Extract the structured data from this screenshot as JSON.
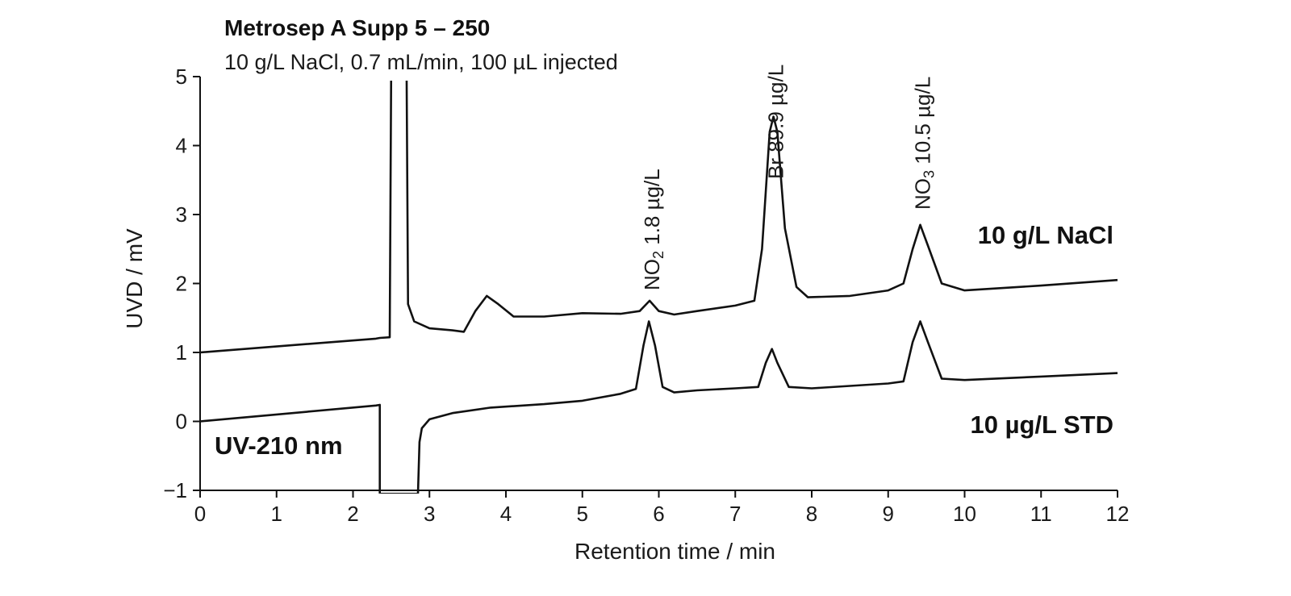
{
  "chart_data": {
    "type": "line",
    "title": "Metrosep A Supp 5 – 250",
    "subtitle": "10 g/L NaCl, 0.7 mL/min, 100 µL injected",
    "xlabel": "Retention  time / min",
    "ylabel": "UVD / mV",
    "xlim": [
      0,
      12
    ],
    "ylim": [
      -1,
      5
    ],
    "xticks": [
      "0",
      "1",
      "2",
      "3",
      "4",
      "5",
      "6",
      "7",
      "8",
      "9",
      "10",
      "11",
      "12"
    ],
    "yticks": [
      "−1",
      "0",
      "1",
      "2",
      "3",
      "4",
      "5"
    ],
    "grid": false,
    "detector_label": "UV-210 nm",
    "series": [
      {
        "name": "10 g/L NaCl",
        "baseline": [
          [
            0,
            1.0
          ],
          [
            12,
            2.05
          ]
        ],
        "points": [
          [
            0,
            1.0
          ],
          [
            2.3,
            1.2
          ],
          [
            2.35,
            1.21
          ],
          [
            2.48,
            1.22
          ],
          [
            2.5,
            5.3
          ],
          [
            2.7,
            5.3
          ],
          [
            2.72,
            1.7
          ],
          [
            2.8,
            1.45
          ],
          [
            3.0,
            1.35
          ],
          [
            3.3,
            1.32
          ],
          [
            3.45,
            1.3
          ],
          [
            3.6,
            1.6
          ],
          [
            3.75,
            1.82
          ],
          [
            3.9,
            1.7
          ],
          [
            4.1,
            1.52
          ],
          [
            4.5,
            1.52
          ],
          [
            5.0,
            1.57
          ],
          [
            5.5,
            1.56
          ],
          [
            5.75,
            1.6
          ],
          [
            5.88,
            1.75
          ],
          [
            6.0,
            1.6
          ],
          [
            6.2,
            1.55
          ],
          [
            6.5,
            1.6
          ],
          [
            7.0,
            1.68
          ],
          [
            7.25,
            1.75
          ],
          [
            7.35,
            2.5
          ],
          [
            7.45,
            4.2
          ],
          [
            7.5,
            4.42
          ],
          [
            7.55,
            4.2
          ],
          [
            7.65,
            2.8
          ],
          [
            7.8,
            1.95
          ],
          [
            7.95,
            1.8
          ],
          [
            8.5,
            1.82
          ],
          [
            9.0,
            1.9
          ],
          [
            9.2,
            2.0
          ],
          [
            9.32,
            2.5
          ],
          [
            9.42,
            2.85
          ],
          [
            9.52,
            2.55
          ],
          [
            9.7,
            2.0
          ],
          [
            10.0,
            1.9
          ],
          [
            11.0,
            1.97
          ],
          [
            12.0,
            2.05
          ]
        ]
      },
      {
        "name": "10 µg/L STD",
        "points": [
          [
            0,
            0.0
          ],
          [
            2.3,
            0.23
          ],
          [
            2.35,
            0.24
          ],
          [
            2.35,
            -1.05
          ],
          [
            2.85,
            -1.05
          ],
          [
            2.87,
            -0.3
          ],
          [
            2.9,
            -0.1
          ],
          [
            3.0,
            0.03
          ],
          [
            3.3,
            0.12
          ],
          [
            3.8,
            0.2
          ],
          [
            4.5,
            0.25
          ],
          [
            5.0,
            0.3
          ],
          [
            5.5,
            0.4
          ],
          [
            5.7,
            0.47
          ],
          [
            5.8,
            1.1
          ],
          [
            5.87,
            1.45
          ],
          [
            5.95,
            1.1
          ],
          [
            6.05,
            0.5
          ],
          [
            6.2,
            0.42
          ],
          [
            6.5,
            0.45
          ],
          [
            7.0,
            0.48
          ],
          [
            7.3,
            0.5
          ],
          [
            7.4,
            0.85
          ],
          [
            7.48,
            1.05
          ],
          [
            7.55,
            0.85
          ],
          [
            7.7,
            0.5
          ],
          [
            8.0,
            0.48
          ],
          [
            9.0,
            0.55
          ],
          [
            9.2,
            0.58
          ],
          [
            9.32,
            1.15
          ],
          [
            9.42,
            1.45
          ],
          [
            9.52,
            1.15
          ],
          [
            9.7,
            0.62
          ],
          [
            10.0,
            0.6
          ],
          [
            11.0,
            0.65
          ],
          [
            12.0,
            0.7
          ]
        ]
      }
    ],
    "peak_labels": [
      {
        "name": "NO2 peak",
        "formula_main": "NO",
        "formula_sub": "2",
        "conc": " 1.8 µg/L",
        "x": 5.88
      },
      {
        "name": "Br peak",
        "formula_main": "Br",
        "formula_sub": "",
        "conc": " 89.9 µg/L",
        "x": 7.5
      },
      {
        "name": "NO3 peak",
        "formula_main": "NO",
        "formula_sub": "3",
        "conc": " 10.5 µg/L",
        "x": 9.42
      }
    ],
    "trace_labels": [
      "10 g/L NaCl",
      "10 µg/L STD"
    ]
  }
}
